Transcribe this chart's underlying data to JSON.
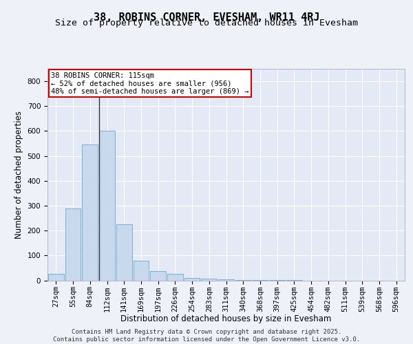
{
  "title1": "38, ROBINS CORNER, EVESHAM, WR11 4RJ",
  "title2": "Size of property relative to detached houses in Evesham",
  "xlabel": "Distribution of detached houses by size in Evesham",
  "ylabel": "Number of detached properties",
  "categories": [
    "27sqm",
    "55sqm",
    "84sqm",
    "112sqm",
    "141sqm",
    "169sqm",
    "197sqm",
    "226sqm",
    "254sqm",
    "283sqm",
    "311sqm",
    "340sqm",
    "368sqm",
    "397sqm",
    "425sqm",
    "454sqm",
    "482sqm",
    "511sqm",
    "539sqm",
    "568sqm",
    "596sqm"
  ],
  "values": [
    25,
    290,
    545,
    600,
    225,
    80,
    38,
    25,
    10,
    8,
    5,
    2,
    1,
    1,
    1,
    0,
    0,
    0,
    0,
    0,
    0
  ],
  "bar_color": "#c8d9ee",
  "bar_edge_color": "#7aafd4",
  "vline_color": "#333333",
  "vline_index": 2.55,
  "annotation_text": "38 ROBINS CORNER: 115sqm\n← 52% of detached houses are smaller (956)\n48% of semi-detached houses are larger (869) →",
  "annotation_box_color": "#ffffff",
  "annotation_box_edge_color": "#cc0000",
  "ylim": [
    0,
    850
  ],
  "yticks": [
    0,
    100,
    200,
    300,
    400,
    500,
    600,
    700,
    800
  ],
  "background_color": "#eef2f8",
  "plot_bg_color": "#e4eaf5",
  "grid_color": "#ffffff",
  "footer_line1": "Contains HM Land Registry data © Crown copyright and database right 2025.",
  "footer_line2": "Contains public sector information licensed under the Open Government Licence v3.0.",
  "title_fontsize": 11,
  "subtitle_fontsize": 9.5,
  "axis_label_fontsize": 8.5,
  "tick_fontsize": 7.5,
  "annotation_fontsize": 7.5,
  "footer_fontsize": 6.5
}
